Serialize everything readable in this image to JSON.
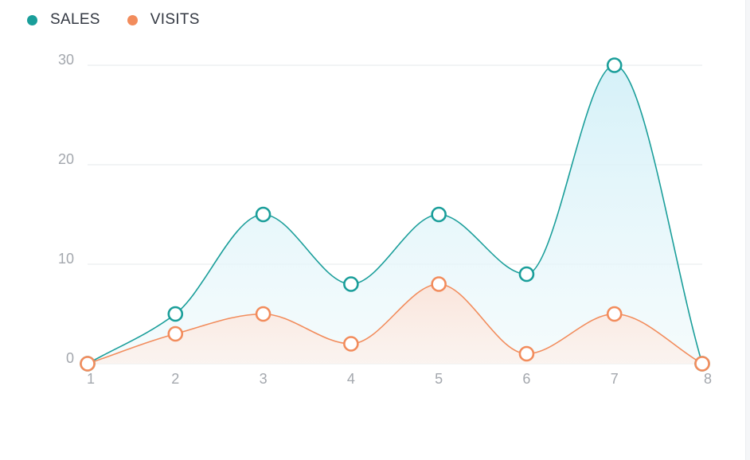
{
  "chart_data": {
    "type": "area",
    "x": [
      "1",
      "2",
      "3",
      "4",
      "5",
      "6",
      "7",
      "8"
    ],
    "series": [
      {
        "name": "SALES",
        "values": [
          0,
          5,
          15,
          8,
          15,
          9,
          30,
          0
        ],
        "color": "#1a9e9a",
        "fill": "#d6f1f7"
      },
      {
        "name": "VISITS",
        "values": [
          0,
          3,
          5,
          2,
          8,
          1,
          5,
          0
        ],
        "color": "#f28c5c",
        "fill": "#fde9e0"
      }
    ],
    "y_ticks": [
      "0",
      "10",
      "20",
      "30"
    ],
    "ylim": [
      0,
      30
    ],
    "grid": true,
    "legend": "top-left",
    "smooth": true
  }
}
